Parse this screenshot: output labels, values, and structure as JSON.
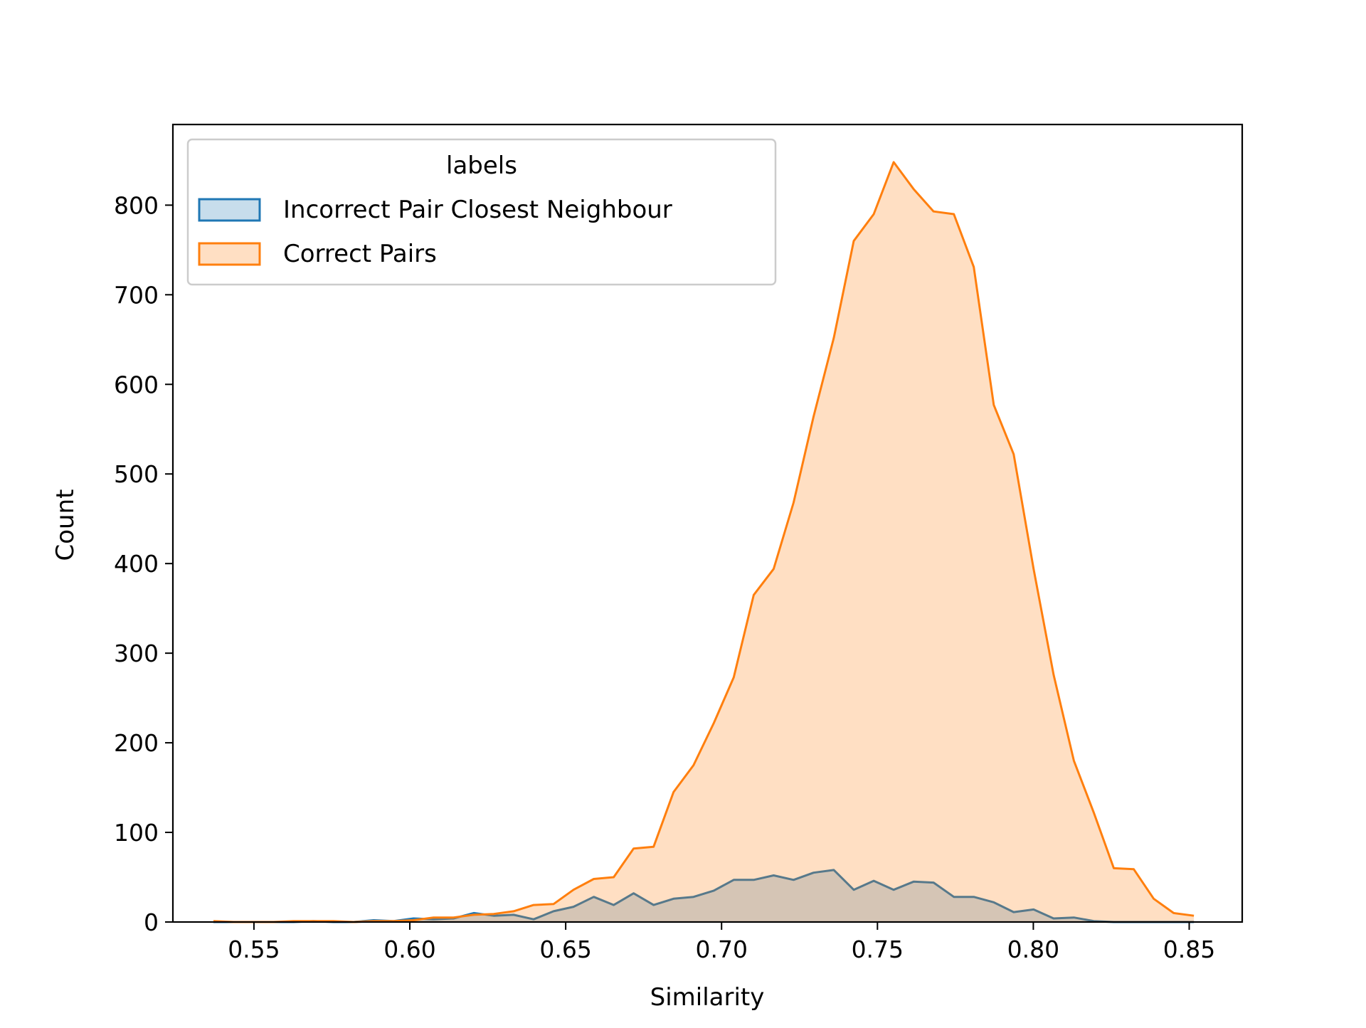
{
  "chart_data": {
    "type": "area",
    "xlabel": "Similarity",
    "ylabel": "Count",
    "xlim": [
      0.524,
      0.867
    ],
    "ylim": [
      0,
      890
    ],
    "x_ticks": [
      0.55,
      0.6,
      0.65,
      0.7,
      0.75,
      0.8,
      0.85
    ],
    "x_tick_labels": [
      "0.55",
      "0.60",
      "0.65",
      "0.70",
      "0.75",
      "0.80",
      "0.85"
    ],
    "y_ticks": [
      0,
      100,
      200,
      300,
      400,
      500,
      600,
      700,
      800
    ],
    "y_tick_labels": [
      "0",
      "100",
      "200",
      "300",
      "400",
      "500",
      "600",
      "700",
      "800"
    ],
    "grid": false,
    "legend": {
      "title": "labels",
      "position": "top-left",
      "entries": [
        "Incorrect Pair Closest Neighbour",
        "Correct Pairs"
      ]
    },
    "series": [
      {
        "name": "Incorrect Pair Closest Neighbour",
        "line_color": "#1f77b4",
        "fill_color": "#1f77b4",
        "fill_opacity": 0.25,
        "x": [
          0.537,
          0.5435,
          0.5499,
          0.5563,
          0.5627,
          0.5691,
          0.5755,
          0.582,
          0.5884,
          0.5948,
          0.6012,
          0.6076,
          0.614,
          0.6205,
          0.6269,
          0.6333,
          0.6397,
          0.6461,
          0.6525,
          0.659,
          0.6654,
          0.6718,
          0.6782,
          0.6846,
          0.691,
          0.6975,
          0.7039,
          0.7103,
          0.7167,
          0.7231,
          0.7295,
          0.736,
          0.7424,
          0.7488,
          0.7552,
          0.7616,
          0.768,
          0.7745,
          0.7809,
          0.7873,
          0.7937,
          0.8001,
          0.8065,
          0.813,
          0.8194,
          0.8258,
          0.8322,
          0.8386,
          0.845,
          0.8515
        ],
        "values": [
          0,
          0,
          0,
          0,
          0,
          1,
          0,
          0,
          2,
          1,
          4,
          3,
          4,
          10,
          7,
          8,
          3,
          12,
          17,
          28,
          19,
          32,
          19,
          26,
          28,
          35,
          47,
          47,
          52,
          47,
          55,
          58,
          36,
          46,
          36,
          45,
          44,
          28,
          28,
          22,
          11,
          14,
          4,
          5,
          1,
          0,
          0,
          0,
          0,
          0
        ]
      },
      {
        "name": "Correct Pairs",
        "line_color": "#ff7f0e",
        "fill_color": "#ff7f0e",
        "fill_opacity": 0.25,
        "x": [
          0.537,
          0.5435,
          0.5499,
          0.5563,
          0.5627,
          0.5691,
          0.5755,
          0.582,
          0.5884,
          0.5948,
          0.6012,
          0.6076,
          0.614,
          0.6205,
          0.6269,
          0.6333,
          0.6397,
          0.6461,
          0.6525,
          0.659,
          0.6654,
          0.6718,
          0.6782,
          0.6846,
          0.691,
          0.6975,
          0.7039,
          0.7103,
          0.7167,
          0.7231,
          0.7295,
          0.736,
          0.7424,
          0.7488,
          0.7552,
          0.7616,
          0.768,
          0.7745,
          0.7809,
          0.7873,
          0.7937,
          0.8001,
          0.8065,
          0.813,
          0.8194,
          0.8258,
          0.8322,
          0.8386,
          0.845,
          0.8515
        ],
        "values": [
          1,
          0,
          0,
          0,
          1,
          1,
          1,
          0,
          1,
          1,
          2,
          5,
          5,
          8,
          9,
          12,
          19,
          20,
          36,
          48,
          50,
          82,
          84,
          145,
          175,
          222,
          273,
          365,
          394,
          468,
          564,
          652,
          760,
          790,
          848,
          818,
          793,
          790,
          731,
          577,
          522,
          394,
          276,
          180,
          122,
          60,
          59,
          26,
          10,
          7
        ]
      }
    ]
  }
}
